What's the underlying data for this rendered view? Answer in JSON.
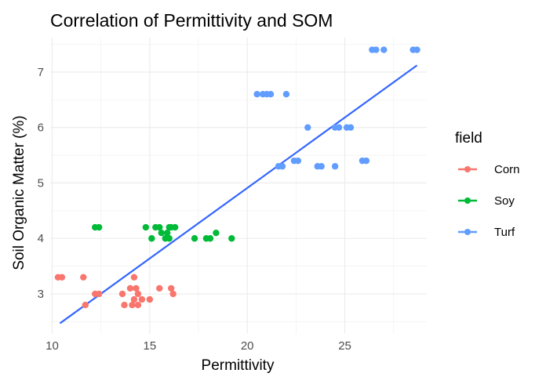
{
  "chart_data": {
    "type": "scatter",
    "title": "Correlation of Permittivity and SOM",
    "xlabel": "Permittivity",
    "ylabel": "Soil Organic Matter (%)",
    "xlim": [
      9.9,
      29.2
    ],
    "ylim": [
      2.28,
      7.62
    ],
    "xticks": [
      10,
      15,
      20,
      25
    ],
    "yticks": [
      3,
      4,
      5,
      6,
      7
    ],
    "grid": true,
    "legend": {
      "title": "field",
      "position": "right"
    },
    "series": [
      {
        "name": "Corn",
        "color": "#F8766D",
        "points": [
          [
            10.3,
            3.3
          ],
          [
            10.5,
            3.3
          ],
          [
            11.6,
            3.3
          ],
          [
            11.7,
            2.8
          ],
          [
            12.2,
            3.0
          ],
          [
            12.4,
            3.0
          ],
          [
            13.6,
            3.0
          ],
          [
            13.7,
            2.8
          ],
          [
            14.0,
            3.1
          ],
          [
            14.1,
            2.8
          ],
          [
            14.2,
            3.3
          ],
          [
            14.3,
            3.1
          ],
          [
            14.4,
            3.0
          ],
          [
            14.4,
            2.8
          ],
          [
            14.6,
            2.9
          ],
          [
            15.0,
            2.9
          ],
          [
            15.5,
            3.1
          ],
          [
            16.1,
            3.1
          ],
          [
            16.2,
            3.0
          ],
          [
            14.2,
            2.9
          ]
        ]
      },
      {
        "name": "Soy",
        "color": "#00BA38",
        "points": [
          [
            12.2,
            4.2
          ],
          [
            12.4,
            4.2
          ],
          [
            14.8,
            4.2
          ],
          [
            15.1,
            4.0
          ],
          [
            15.3,
            4.2
          ],
          [
            15.5,
            4.2
          ],
          [
            15.6,
            4.1
          ],
          [
            15.8,
            4.0
          ],
          [
            15.9,
            4.1
          ],
          [
            16.0,
            4.2
          ],
          [
            16.0,
            4.0
          ],
          [
            16.1,
            4.2
          ],
          [
            16.3,
            4.2
          ],
          [
            17.3,
            4.0
          ],
          [
            17.9,
            4.0
          ],
          [
            18.1,
            4.0
          ],
          [
            18.4,
            4.1
          ],
          [
            19.2,
            4.0
          ]
        ]
      },
      {
        "name": "Turf",
        "color": "#619CFF",
        "points": [
          [
            20.5,
            6.6
          ],
          [
            20.8,
            6.6
          ],
          [
            21.0,
            6.6
          ],
          [
            21.2,
            6.6
          ],
          [
            21.6,
            5.3
          ],
          [
            21.8,
            5.3
          ],
          [
            22.0,
            6.6
          ],
          [
            22.4,
            5.4
          ],
          [
            22.6,
            5.4
          ],
          [
            23.1,
            6.0
          ],
          [
            23.6,
            5.3
          ],
          [
            23.8,
            5.3
          ],
          [
            24.5,
            5.3
          ],
          [
            24.5,
            6.0
          ],
          [
            24.7,
            6.0
          ],
          [
            25.1,
            6.0
          ],
          [
            25.3,
            6.0
          ],
          [
            25.9,
            5.4
          ],
          [
            26.1,
            5.4
          ],
          [
            26.4,
            7.4
          ],
          [
            26.6,
            7.4
          ],
          [
            27.0,
            7.4
          ],
          [
            28.5,
            7.4
          ],
          [
            28.7,
            7.4
          ]
        ]
      }
    ],
    "fit_line": {
      "color": "#3366FF",
      "x": [
        10.4,
        28.7
      ],
      "y": [
        2.47,
        7.12
      ]
    }
  }
}
